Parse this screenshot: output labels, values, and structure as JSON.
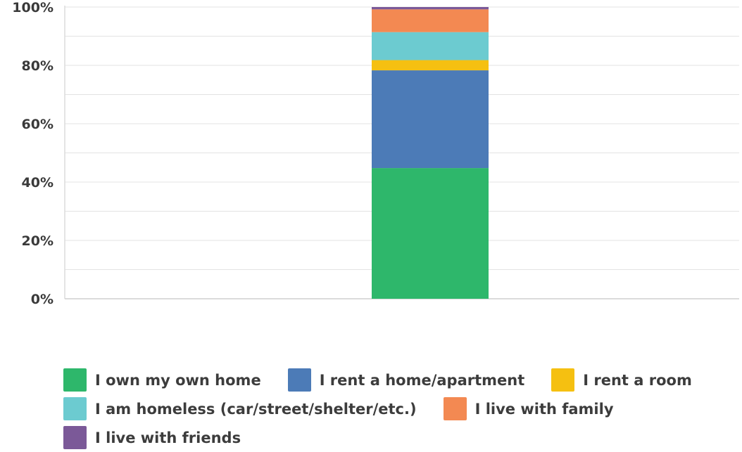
{
  "chart_data": {
    "type": "bar",
    "stacked": true,
    "categories": [
      ""
    ],
    "ylim": [
      0,
      100
    ],
    "y_ticks": [
      "0%",
      "20%",
      "40%",
      "60%",
      "80%",
      "100%"
    ],
    "grid": true,
    "legend_position": "bottom",
    "series": [
      {
        "name": "I own my own home",
        "color": "#2eb76b",
        "values": [
          44.8
        ]
      },
      {
        "name": "I rent a home/apartment",
        "color": "#4c7bb7",
        "values": [
          33.5
        ]
      },
      {
        "name": "I rent a room",
        "color": "#f5c011",
        "values": [
          3.5
        ]
      },
      {
        "name": "I am homeless (car/street/shelter/etc.)",
        "color": "#6ccbd0",
        "values": [
          9.6
        ]
      },
      {
        "name": "I live with family",
        "color": "#f38952",
        "values": [
          7.8
        ]
      },
      {
        "name": "I live with friends",
        "color": "#7b5998",
        "values": [
          0.8
        ]
      }
    ]
  },
  "legend_rows": [
    [
      0,
      1,
      2
    ],
    [
      3,
      4
    ],
    [
      5
    ]
  ]
}
